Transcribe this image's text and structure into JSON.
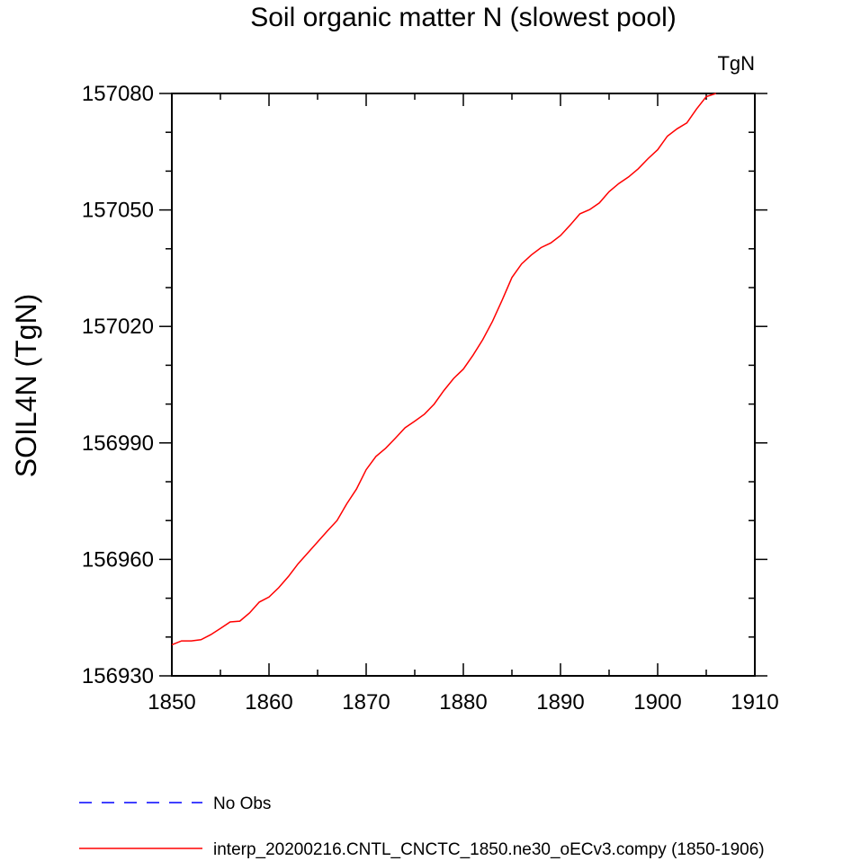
{
  "chart_data": {
    "type": "line",
    "title": "Soil organic matter N (slowest pool)",
    "units_label": "TgN",
    "xlabel": "",
    "ylabel": "SOIL4N  (TgN)",
    "xlim": [
      1850,
      1910
    ],
    "ylim": [
      156930,
      157080
    ],
    "xticks": [
      1850,
      1860,
      1870,
      1880,
      1890,
      1900,
      1910
    ],
    "yticks": [
      156930,
      156960,
      156990,
      157020,
      157050,
      157080
    ],
    "grid": false,
    "legend_position": "bottom-left",
    "series": [
      {
        "name": "No Obs",
        "color": "#0000ff",
        "dashed": true,
        "x": [],
        "y": []
      },
      {
        "name": "interp_20200216.CNTL_CNCTC_1850.ne30_oECv3.compy (1850-1906)",
        "color": "#ff0000",
        "dashed": false,
        "x": [
          1850,
          1851,
          1852,
          1853,
          1854,
          1855,
          1856,
          1857,
          1858,
          1859,
          1860,
          1861,
          1862,
          1863,
          1864,
          1865,
          1866,
          1867,
          1868,
          1869,
          1870,
          1871,
          1872,
          1873,
          1874,
          1875,
          1876,
          1877,
          1878,
          1879,
          1880,
          1881,
          1882,
          1883,
          1884,
          1885,
          1886,
          1887,
          1888,
          1889,
          1890,
          1891,
          1892,
          1893,
          1894,
          1895,
          1896,
          1897,
          1898,
          1899,
          1900,
          1901,
          1902,
          1903,
          1904,
          1905,
          1906
        ],
        "y": [
          156938.0,
          156939.0,
          156939.0,
          156939.3,
          156940.6,
          156942.2,
          156943.9,
          156944.1,
          156946.2,
          156949.0,
          156950.3,
          156952.7,
          156955.6,
          156958.9,
          156961.7,
          156964.5,
          156967.3,
          156970.0,
          156974.3,
          156978.1,
          156983.1,
          156986.5,
          156988.6,
          156991.2,
          156993.9,
          156995.6,
          156997.4,
          157000.0,
          157003.5,
          157006.6,
          157009.0,
          157012.6,
          157016.6,
          157021.3,
          157026.8,
          157032.6,
          157036.1,
          157038.4,
          157040.3,
          157041.5,
          157043.4,
          157046.1,
          157049.0,
          157050.1,
          157051.8,
          157054.7,
          157056.8,
          157058.5,
          157060.6,
          157063.2,
          157065.5,
          157069.0,
          157070.9,
          157072.4,
          157076.0,
          157079.2,
          157080.0
        ]
      }
    ]
  }
}
